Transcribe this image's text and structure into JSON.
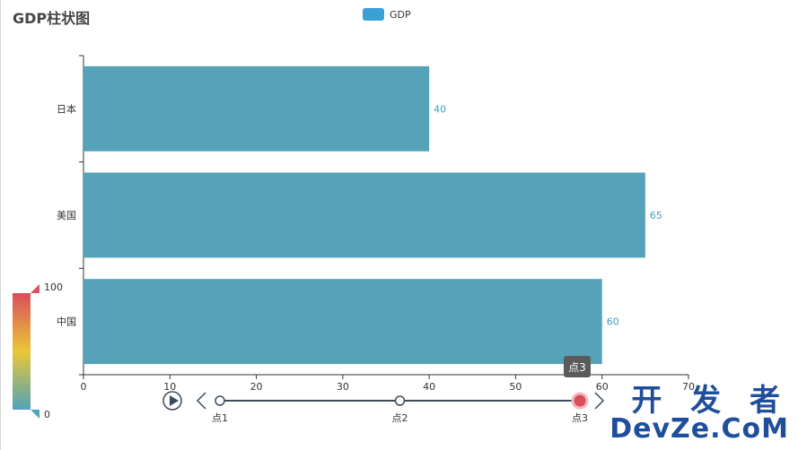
{
  "chart_data": {
    "type": "bar",
    "orientation": "horizontal",
    "title": "GDP柱状图",
    "legend": [
      "GDP"
    ],
    "legend_placement": "top-center",
    "categories": [
      "中国",
      "美国",
      "日本"
    ],
    "series": [
      {
        "name": "GDP",
        "values": [
          60,
          65,
          40
        ],
        "color": "#56a3b9"
      }
    ],
    "xlim": [
      0,
      70
    ],
    "xticks": [
      0,
      10,
      20,
      30,
      40,
      50,
      60,
      70
    ],
    "grid": false,
    "data_labels_color": "#3f9fc2",
    "visual_map": {
      "min": 100,
      "max_label": "100",
      "min_label": "0",
      "colors": [
        "#d94e5d",
        "#eac736",
        "#50a3ba"
      ]
    },
    "timeline": {
      "points": [
        "点1",
        "点2",
        "点3"
      ],
      "current_index": 2,
      "tooltip": "点3"
    }
  },
  "watermark": {
    "line1": "开 发 者",
    "line2": "DevZe.CoM"
  },
  "colors": {
    "axis": "#333333",
    "accent_red": "#d94e5d",
    "timeline_line": "#3c4b5a"
  }
}
